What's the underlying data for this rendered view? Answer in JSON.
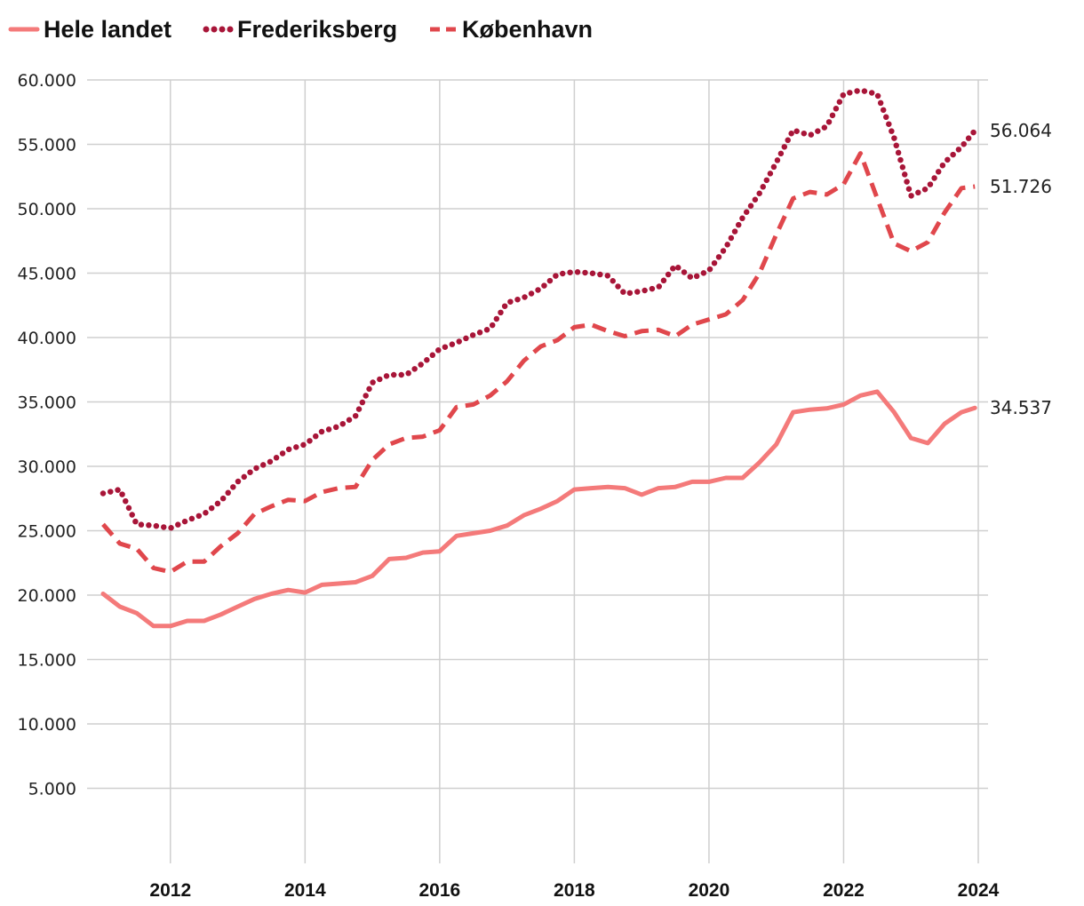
{
  "chart_data": {
    "type": "line",
    "title": "",
    "xlabel": "",
    "ylabel": "",
    "xlim": [
      2011,
      2024
    ],
    "ylim": [
      0,
      60000
    ],
    "x_ticks": [
      "2012",
      "2014",
      "2016",
      "2018",
      "2020",
      "2022",
      "2024"
    ],
    "x_tick_values": [
      2012,
      2014,
      2016,
      2018,
      2020,
      2022,
      2024
    ],
    "y_ticks": [
      "5.000",
      "10.000",
      "15.000",
      "20.000",
      "25.000",
      "30.000",
      "35.000",
      "40.000",
      "45.000",
      "50.000",
      "55.000",
      "60.000"
    ],
    "y_tick_values": [
      5000,
      10000,
      15000,
      20000,
      25000,
      30000,
      35000,
      40000,
      45000,
      50000,
      55000,
      60000
    ],
    "grid": true,
    "legend_position": "top-left",
    "x": [
      2011.0,
      2011.25,
      2011.5,
      2011.75,
      2012.0,
      2012.25,
      2012.5,
      2012.75,
      2013.0,
      2013.25,
      2013.5,
      2013.75,
      2014.0,
      2014.25,
      2014.5,
      2014.75,
      2015.0,
      2015.25,
      2015.5,
      2015.75,
      2016.0,
      2016.25,
      2016.5,
      2016.75,
      2017.0,
      2017.25,
      2017.5,
      2017.75,
      2018.0,
      2018.25,
      2018.5,
      2018.75,
      2019.0,
      2019.25,
      2019.5,
      2019.75,
      2020.0,
      2020.25,
      2020.5,
      2020.75,
      2021.0,
      2021.25,
      2021.5,
      2021.75,
      2022.0,
      2022.25,
      2022.5,
      2022.75,
      2023.0,
      2023.25,
      2023.5,
      2023.75,
      2023.95
    ],
    "series": [
      {
        "name": "Hele landet",
        "style": "solid",
        "color": "#F47A7A",
        "end_label": "34.537",
        "values": [
          20100,
          19100,
          18600,
          17600,
          17600,
          18000,
          18000,
          18500,
          19100,
          19700,
          20100,
          20400,
          20200,
          20800,
          20900,
          21000,
          21500,
          22800,
          22900,
          23300,
          23400,
          24600,
          24800,
          25000,
          25400,
          26200,
          26700,
          27300,
          28200,
          28300,
          28400,
          28300,
          27800,
          28300,
          28400,
          28800,
          28800,
          29100,
          29100,
          30300,
          31700,
          34200,
          34400,
          34500,
          34800,
          35500,
          35800,
          34200,
          32200,
          31800,
          33300,
          34200,
          34537
        ]
      },
      {
        "name": "Frederiksberg",
        "style": "dotted",
        "color": "#A81538",
        "end_label": "56.064",
        "values": [
          27900,
          28200,
          25500,
          25400,
          25200,
          25800,
          26300,
          27300,
          28800,
          29800,
          30400,
          31300,
          31700,
          32700,
          33100,
          33900,
          36500,
          37100,
          37100,
          38000,
          39100,
          39600,
          40200,
          40700,
          42700,
          43100,
          43800,
          44900,
          45100,
          45000,
          44800,
          43400,
          43600,
          43900,
          45600,
          44600,
          45200,
          47000,
          49300,
          51200,
          53600,
          56100,
          55700,
          56400,
          58900,
          59200,
          58900,
          55500,
          51000,
          51600,
          53600,
          54800,
          56064
        ]
      },
      {
        "name": "København",
        "style": "dashed",
        "color": "#E0474C",
        "end_label": "51.726",
        "values": [
          25500,
          24000,
          23600,
          22100,
          21800,
          22600,
          22600,
          23800,
          24800,
          26300,
          26900,
          27400,
          27300,
          28000,
          28300,
          28400,
          30500,
          31700,
          32200,
          32300,
          32800,
          34600,
          34800,
          35500,
          36600,
          38200,
          39300,
          39800,
          40800,
          41000,
          40500,
          40100,
          40500,
          40600,
          40100,
          41000,
          41400,
          41800,
          42900,
          45000,
          48000,
          50800,
          51300,
          51100,
          51900,
          54300,
          50800,
          47300,
          46700,
          47400,
          49700,
          51600,
          51726
        ]
      }
    ]
  }
}
